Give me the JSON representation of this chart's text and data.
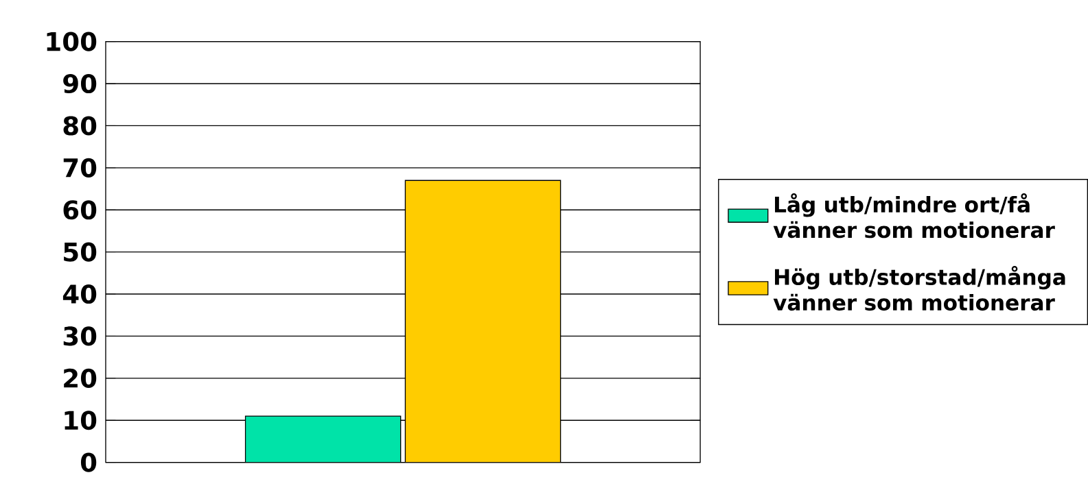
{
  "chart_data": {
    "type": "bar",
    "categories": [
      null
    ],
    "series": [
      {
        "name": "Låg utb/mindre ort/få vänner som motionerar",
        "color": "#00e3a8",
        "values": [
          11
        ]
      },
      {
        "name": "Hög utb/storstad/många vänner som motionerar",
        "color": "#ffcc00",
        "values": [
          67
        ]
      }
    ],
    "ylim": [
      0,
      100
    ],
    "yticks": [
      0,
      10,
      20,
      30,
      40,
      50,
      60,
      70,
      80,
      90,
      100
    ],
    "grid": "y",
    "legend": "right"
  }
}
